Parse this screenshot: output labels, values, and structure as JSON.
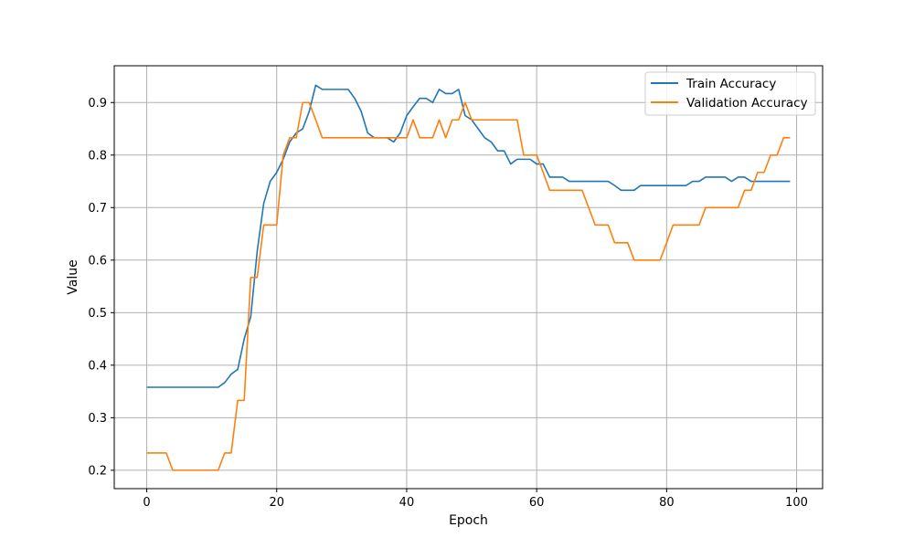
{
  "chart_data": {
    "type": "line",
    "title": "",
    "xlabel": "Epoch",
    "ylabel": "Value",
    "xlim": [
      -5,
      104
    ],
    "ylim": [
      0.165,
      0.97
    ],
    "xticks": [
      0,
      20,
      40,
      60,
      80,
      100
    ],
    "yticks": [
      0.2,
      0.3,
      0.4,
      0.5,
      0.6,
      0.7,
      0.8,
      0.9
    ],
    "grid": true,
    "legend_position": "top-right",
    "series": [
      {
        "name": "Train Accuracy",
        "color": "#1f77b4",
        "x": [
          0,
          1,
          2,
          3,
          4,
          5,
          6,
          7,
          8,
          9,
          10,
          11,
          12,
          13,
          14,
          15,
          16,
          17,
          18,
          19,
          20,
          21,
          22,
          23,
          24,
          25,
          26,
          27,
          28,
          29,
          30,
          31,
          32,
          33,
          34,
          35,
          36,
          37,
          38,
          39,
          40,
          41,
          42,
          43,
          44,
          45,
          46,
          47,
          48,
          49,
          50,
          51,
          52,
          53,
          54,
          55,
          56,
          57,
          58,
          59,
          60,
          61,
          62,
          63,
          64,
          65,
          66,
          67,
          68,
          69,
          70,
          71,
          72,
          73,
          74,
          75,
          76,
          77,
          78,
          79,
          80,
          81,
          82,
          83,
          84,
          85,
          86,
          87,
          88,
          89,
          90,
          91,
          92,
          93,
          94,
          95,
          96,
          97,
          98,
          99
        ],
        "values": [
          0.358,
          0.358,
          0.358,
          0.358,
          0.358,
          0.358,
          0.358,
          0.358,
          0.358,
          0.358,
          0.358,
          0.358,
          0.367,
          0.383,
          0.392,
          0.45,
          0.492,
          0.617,
          0.708,
          0.75,
          0.767,
          0.792,
          0.825,
          0.842,
          0.85,
          0.883,
          0.933,
          0.925,
          0.925,
          0.925,
          0.925,
          0.925,
          0.908,
          0.883,
          0.842,
          0.833,
          0.833,
          0.833,
          0.825,
          0.842,
          0.875,
          0.892,
          0.908,
          0.908,
          0.9,
          0.925,
          0.917,
          0.917,
          0.925,
          0.875,
          0.867,
          0.85,
          0.833,
          0.825,
          0.808,
          0.808,
          0.783,
          0.792,
          0.792,
          0.792,
          0.783,
          0.783,
          0.758,
          0.758,
          0.758,
          0.75,
          0.75,
          0.75,
          0.75,
          0.75,
          0.75,
          0.75,
          0.742,
          0.733,
          0.733,
          0.733,
          0.742,
          0.742,
          0.742,
          0.742,
          0.742,
          0.742,
          0.742,
          0.742,
          0.75,
          0.75,
          0.758,
          0.758,
          0.758,
          0.758,
          0.75,
          0.758,
          0.758,
          0.75,
          0.75,
          0.75,
          0.75,
          0.75,
          0.75,
          0.75
        ]
      },
      {
        "name": "Validation Accuracy",
        "color": "#ff7f0e",
        "x": [
          0,
          1,
          2,
          3,
          4,
          5,
          6,
          7,
          8,
          9,
          10,
          11,
          12,
          13,
          14,
          15,
          16,
          17,
          18,
          19,
          20,
          21,
          22,
          23,
          24,
          25,
          26,
          27,
          28,
          29,
          30,
          31,
          32,
          33,
          34,
          35,
          36,
          37,
          38,
          39,
          40,
          41,
          42,
          43,
          44,
          45,
          46,
          47,
          48,
          49,
          50,
          51,
          52,
          53,
          54,
          55,
          56,
          57,
          58,
          59,
          60,
          61,
          62,
          63,
          64,
          65,
          66,
          67,
          68,
          69,
          70,
          71,
          72,
          73,
          74,
          75,
          76,
          77,
          78,
          79,
          80,
          81,
          82,
          83,
          84,
          85,
          86,
          87,
          88,
          89,
          90,
          91,
          92,
          93,
          94,
          95,
          96,
          97,
          98,
          99
        ],
        "values": [
          0.233,
          0.233,
          0.233,
          0.233,
          0.2,
          0.2,
          0.2,
          0.2,
          0.2,
          0.2,
          0.2,
          0.2,
          0.233,
          0.233,
          0.333,
          0.333,
          0.567,
          0.567,
          0.667,
          0.667,
          0.667,
          0.8,
          0.833,
          0.833,
          0.9,
          0.9,
          0.867,
          0.833,
          0.833,
          0.833,
          0.833,
          0.833,
          0.833,
          0.833,
          0.833,
          0.833,
          0.833,
          0.833,
          0.833,
          0.833,
          0.833,
          0.867,
          0.833,
          0.833,
          0.833,
          0.867,
          0.833,
          0.867,
          0.867,
          0.9,
          0.867,
          0.867,
          0.867,
          0.867,
          0.867,
          0.867,
          0.867,
          0.867,
          0.8,
          0.8,
          0.8,
          0.767,
          0.733,
          0.733,
          0.733,
          0.733,
          0.733,
          0.733,
          0.7,
          0.667,
          0.667,
          0.667,
          0.633,
          0.633,
          0.633,
          0.6,
          0.6,
          0.6,
          0.6,
          0.6,
          0.633,
          0.667,
          0.667,
          0.667,
          0.667,
          0.667,
          0.7,
          0.7,
          0.7,
          0.7,
          0.7,
          0.7,
          0.733,
          0.733,
          0.767,
          0.767,
          0.8,
          0.8,
          0.833,
          0.833
        ]
      }
    ]
  }
}
